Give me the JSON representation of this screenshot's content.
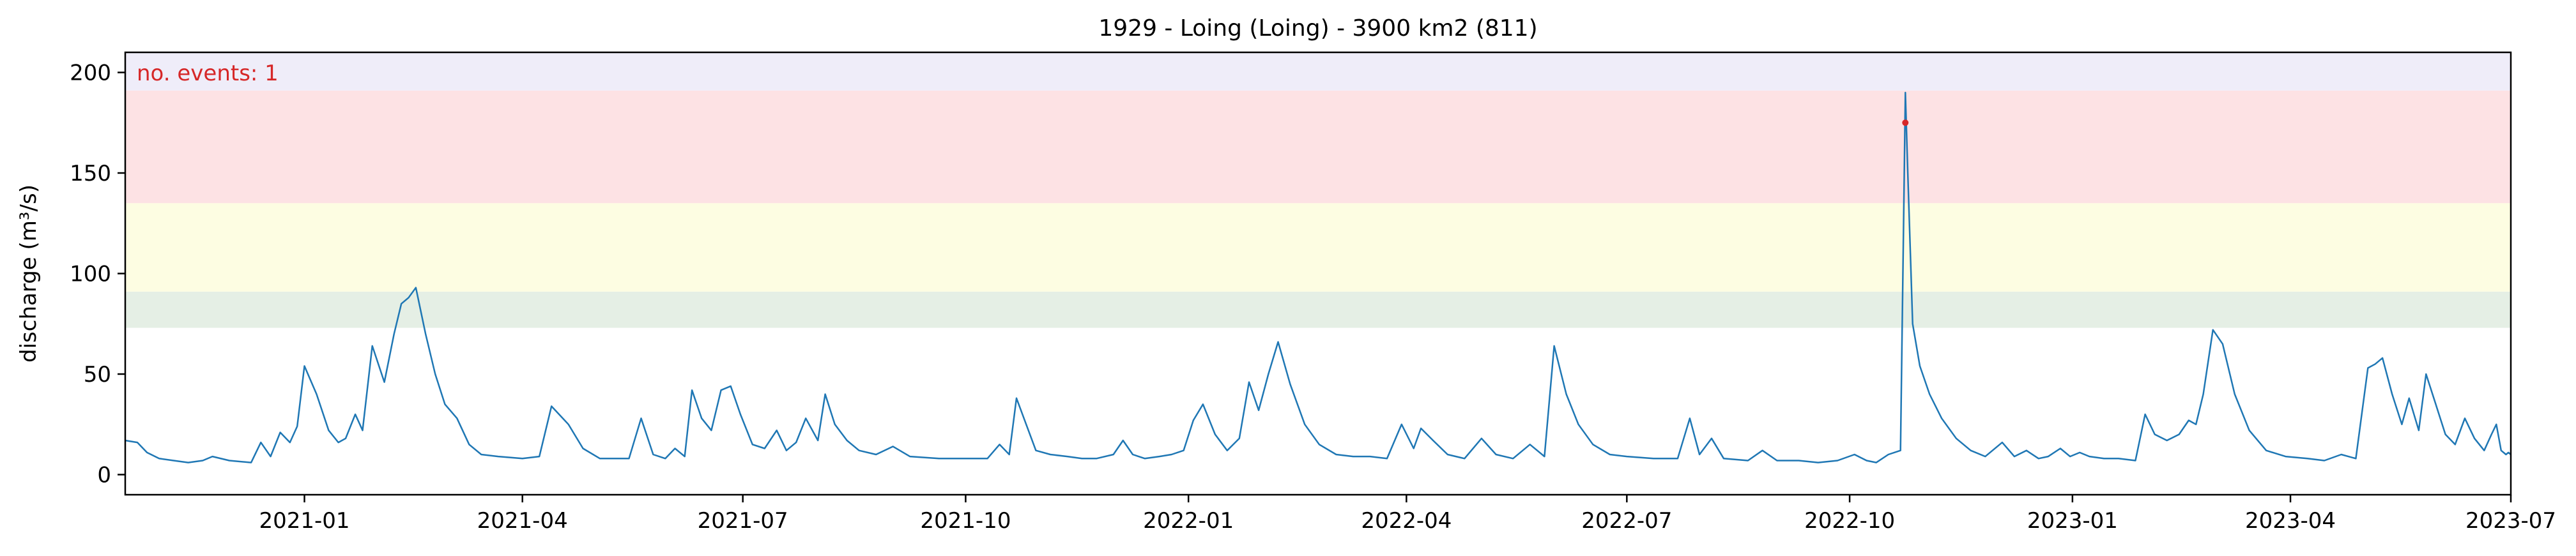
{
  "chart_data": {
    "type": "line",
    "title": "1929 - Loing (Loing) - 3900 km2 (811)",
    "xlabel": "",
    "ylabel": "discharge (m³/s)",
    "ylim": [
      -10,
      210
    ],
    "xlim": [
      "2020-10-19",
      "2023-07-01"
    ],
    "x_ticks": [
      "2021-01",
      "2021-04",
      "2021-07",
      "2021-10",
      "2022-01",
      "2022-04",
      "2022-07",
      "2022-10",
      "2023-01",
      "2023-04",
      "2023-07"
    ],
    "y_ticks": [
      0,
      50,
      100,
      150,
      200
    ],
    "grid": false,
    "annotation": {
      "text": "no. events: 1",
      "color": "#d62728"
    },
    "bands": [
      {
        "from": 73,
        "to": 91,
        "color": "#e5efe5"
      },
      {
        "from": 91,
        "to": 135,
        "color": "#fdfde2"
      },
      {
        "from": 135,
        "to": 191,
        "color": "#fde2e4"
      },
      {
        "from": 191,
        "to": 210,
        "color": "#efedf9"
      }
    ],
    "series": [
      {
        "color": "#1f77b4",
        "points": [
          [
            "2020-10-19",
            17
          ],
          [
            "2020-10-24",
            16
          ],
          [
            "2020-10-28",
            11
          ],
          [
            "2020-11-02",
            8
          ],
          [
            "2020-11-08",
            7
          ],
          [
            "2020-11-14",
            6
          ],
          [
            "2020-11-20",
            7
          ],
          [
            "2020-11-24",
            9
          ],
          [
            "2020-12-01",
            7
          ],
          [
            "2020-12-10",
            6
          ],
          [
            "2020-12-14",
            16
          ],
          [
            "2020-12-18",
            9
          ],
          [
            "2020-12-22",
            21
          ],
          [
            "2020-12-26",
            16
          ],
          [
            "2020-12-29",
            24
          ],
          [
            "2021-01-01",
            54
          ],
          [
            "2021-01-06",
            40
          ],
          [
            "2021-01-11",
            22
          ],
          [
            "2021-01-15",
            16
          ],
          [
            "2021-01-18",
            18
          ],
          [
            "2021-01-22",
            30
          ],
          [
            "2021-01-25",
            22
          ],
          [
            "2021-01-29",
            64
          ],
          [
            "2021-02-03",
            46
          ],
          [
            "2021-02-07",
            70
          ],
          [
            "2021-02-10",
            85
          ],
          [
            "2021-02-13",
            88
          ],
          [
            "2021-02-16",
            93
          ],
          [
            "2021-02-20",
            70
          ],
          [
            "2021-02-24",
            50
          ],
          [
            "2021-02-28",
            35
          ],
          [
            "2021-03-05",
            28
          ],
          [
            "2021-03-10",
            15
          ],
          [
            "2021-03-15",
            10
          ],
          [
            "2021-03-22",
            9
          ],
          [
            "2021-04-01",
            8
          ],
          [
            "2021-04-08",
            9
          ],
          [
            "2021-04-13",
            34
          ],
          [
            "2021-04-20",
            25
          ],
          [
            "2021-04-26",
            13
          ],
          [
            "2021-05-03",
            8
          ],
          [
            "2021-05-15",
            8
          ],
          [
            "2021-05-20",
            28
          ],
          [
            "2021-05-25",
            10
          ],
          [
            "2021-05-30",
            8
          ],
          [
            "2021-06-03",
            13
          ],
          [
            "2021-06-07",
            9
          ],
          [
            "2021-06-10",
            42
          ],
          [
            "2021-06-14",
            28
          ],
          [
            "2021-06-18",
            22
          ],
          [
            "2021-06-22",
            42
          ],
          [
            "2021-06-26",
            44
          ],
          [
            "2021-06-30",
            30
          ],
          [
            "2021-07-05",
            15
          ],
          [
            "2021-07-10",
            13
          ],
          [
            "2021-07-15",
            22
          ],
          [
            "2021-07-19",
            12
          ],
          [
            "2021-07-23",
            16
          ],
          [
            "2021-07-27",
            28
          ],
          [
            "2021-08-01",
            17
          ],
          [
            "2021-08-04",
            40
          ],
          [
            "2021-08-08",
            25
          ],
          [
            "2021-08-13",
            17
          ],
          [
            "2021-08-18",
            12
          ],
          [
            "2021-08-25",
            10
          ],
          [
            "2021-09-01",
            14
          ],
          [
            "2021-09-08",
            9
          ],
          [
            "2021-09-20",
            8
          ],
          [
            "2021-10-01",
            8
          ],
          [
            "2021-10-10",
            8
          ],
          [
            "2021-10-15",
            15
          ],
          [
            "2021-10-19",
            10
          ],
          [
            "2021-10-22",
            38
          ],
          [
            "2021-10-26",
            25
          ],
          [
            "2021-10-30",
            12
          ],
          [
            "2021-11-05",
            10
          ],
          [
            "2021-11-12",
            9
          ],
          [
            "2021-11-18",
            8
          ],
          [
            "2021-11-24",
            8
          ],
          [
            "2021-12-01",
            10
          ],
          [
            "2021-12-05",
            17
          ],
          [
            "2021-12-09",
            10
          ],
          [
            "2021-12-14",
            8
          ],
          [
            "2021-12-20",
            9
          ],
          [
            "2021-12-25",
            10
          ],
          [
            "2021-12-30",
            12
          ],
          [
            "2022-01-03",
            27
          ],
          [
            "2022-01-07",
            35
          ],
          [
            "2022-01-12",
            20
          ],
          [
            "2022-01-17",
            12
          ],
          [
            "2022-01-22",
            18
          ],
          [
            "2022-01-26",
            46
          ],
          [
            "2022-01-30",
            32
          ],
          [
            "2022-02-03",
            50
          ],
          [
            "2022-02-07",
            66
          ],
          [
            "2022-02-12",
            45
          ],
          [
            "2022-02-18",
            25
          ],
          [
            "2022-02-24",
            15
          ],
          [
            "2022-03-03",
            10
          ],
          [
            "2022-03-10",
            9
          ],
          [
            "2022-03-17",
            9
          ],
          [
            "2022-03-24",
            8
          ],
          [
            "2022-03-30",
            25
          ],
          [
            "2022-04-04",
            13
          ],
          [
            "2022-04-07",
            23
          ],
          [
            "2022-04-12",
            17
          ],
          [
            "2022-04-18",
            10
          ],
          [
            "2022-04-25",
            8
          ],
          [
            "2022-05-02",
            18
          ],
          [
            "2022-05-08",
            10
          ],
          [
            "2022-05-15",
            8
          ],
          [
            "2022-05-22",
            15
          ],
          [
            "2022-05-28",
            9
          ],
          [
            "2022-06-01",
            64
          ],
          [
            "2022-06-06",
            40
          ],
          [
            "2022-06-11",
            25
          ],
          [
            "2022-06-17",
            15
          ],
          [
            "2022-06-24",
            10
          ],
          [
            "2022-07-01",
            9
          ],
          [
            "2022-07-12",
            8
          ],
          [
            "2022-07-22",
            8
          ],
          [
            "2022-07-27",
            28
          ],
          [
            "2022-07-31",
            10
          ],
          [
            "2022-08-05",
            18
          ],
          [
            "2022-08-10",
            8
          ],
          [
            "2022-08-20",
            7
          ],
          [
            "2022-08-26",
            12
          ],
          [
            "2022-09-01",
            7
          ],
          [
            "2022-09-10",
            7
          ],
          [
            "2022-09-18",
            6
          ],
          [
            "2022-09-26",
            7
          ],
          [
            "2022-10-03",
            10
          ],
          [
            "2022-10-08",
            7
          ],
          [
            "2022-10-12",
            6
          ],
          [
            "2022-10-17",
            10
          ],
          [
            "2022-10-22",
            12
          ],
          [
            "2022-10-24",
            190
          ],
          [
            "2022-10-25",
            150
          ],
          [
            "2022-10-27",
            75
          ],
          [
            "2022-10-30",
            54
          ],
          [
            "2022-11-03",
            40
          ],
          [
            "2022-11-08",
            28
          ],
          [
            "2022-11-14",
            18
          ],
          [
            "2022-11-20",
            12
          ],
          [
            "2022-11-26",
            9
          ],
          [
            "2022-12-03",
            16
          ],
          [
            "2022-12-08",
            9
          ],
          [
            "2022-12-13",
            12
          ],
          [
            "2022-12-18",
            8
          ],
          [
            "2022-12-22",
            9
          ],
          [
            "2022-12-27",
            13
          ],
          [
            "2022-12-31",
            9
          ],
          [
            "2023-01-04",
            11
          ],
          [
            "2023-01-08",
            9
          ],
          [
            "2023-01-14",
            8
          ],
          [
            "2023-01-20",
            8
          ],
          [
            "2023-01-27",
            7
          ],
          [
            "2023-01-31",
            30
          ],
          [
            "2023-02-04",
            20
          ],
          [
            "2023-02-09",
            17
          ],
          [
            "2023-02-14",
            20
          ],
          [
            "2023-02-18",
            27
          ],
          [
            "2023-02-21",
            25
          ],
          [
            "2023-02-24",
            40
          ],
          [
            "2023-02-28",
            72
          ],
          [
            "2023-03-04",
            65
          ],
          [
            "2023-03-09",
            40
          ],
          [
            "2023-03-15",
            22
          ],
          [
            "2023-03-22",
            12
          ],
          [
            "2023-03-30",
            9
          ],
          [
            "2023-04-08",
            8
          ],
          [
            "2023-04-15",
            7
          ],
          [
            "2023-04-22",
            10
          ],
          [
            "2023-04-28",
            8
          ],
          [
            "2023-05-03",
            53
          ],
          [
            "2023-05-06",
            55
          ],
          [
            "2023-05-09",
            58
          ],
          [
            "2023-05-13",
            40
          ],
          [
            "2023-05-17",
            25
          ],
          [
            "2023-05-20",
            38
          ],
          [
            "2023-05-24",
            22
          ],
          [
            "2023-05-27",
            50
          ],
          [
            "2023-05-31",
            35
          ],
          [
            "2023-06-04",
            20
          ],
          [
            "2023-06-08",
            15
          ],
          [
            "2023-06-12",
            28
          ],
          [
            "2023-06-16",
            18
          ],
          [
            "2023-06-20",
            12
          ],
          [
            "2023-06-23",
            20
          ],
          [
            "2023-06-25",
            25
          ],
          [
            "2023-06-27",
            12
          ],
          [
            "2023-06-29",
            10
          ],
          [
            "2023-06-30",
            11
          ],
          [
            "2023-07-01",
            10
          ]
        ]
      }
    ],
    "markers": [
      {
        "x": "2022-10-24",
        "y": 175,
        "color": "#d62728"
      }
    ]
  }
}
